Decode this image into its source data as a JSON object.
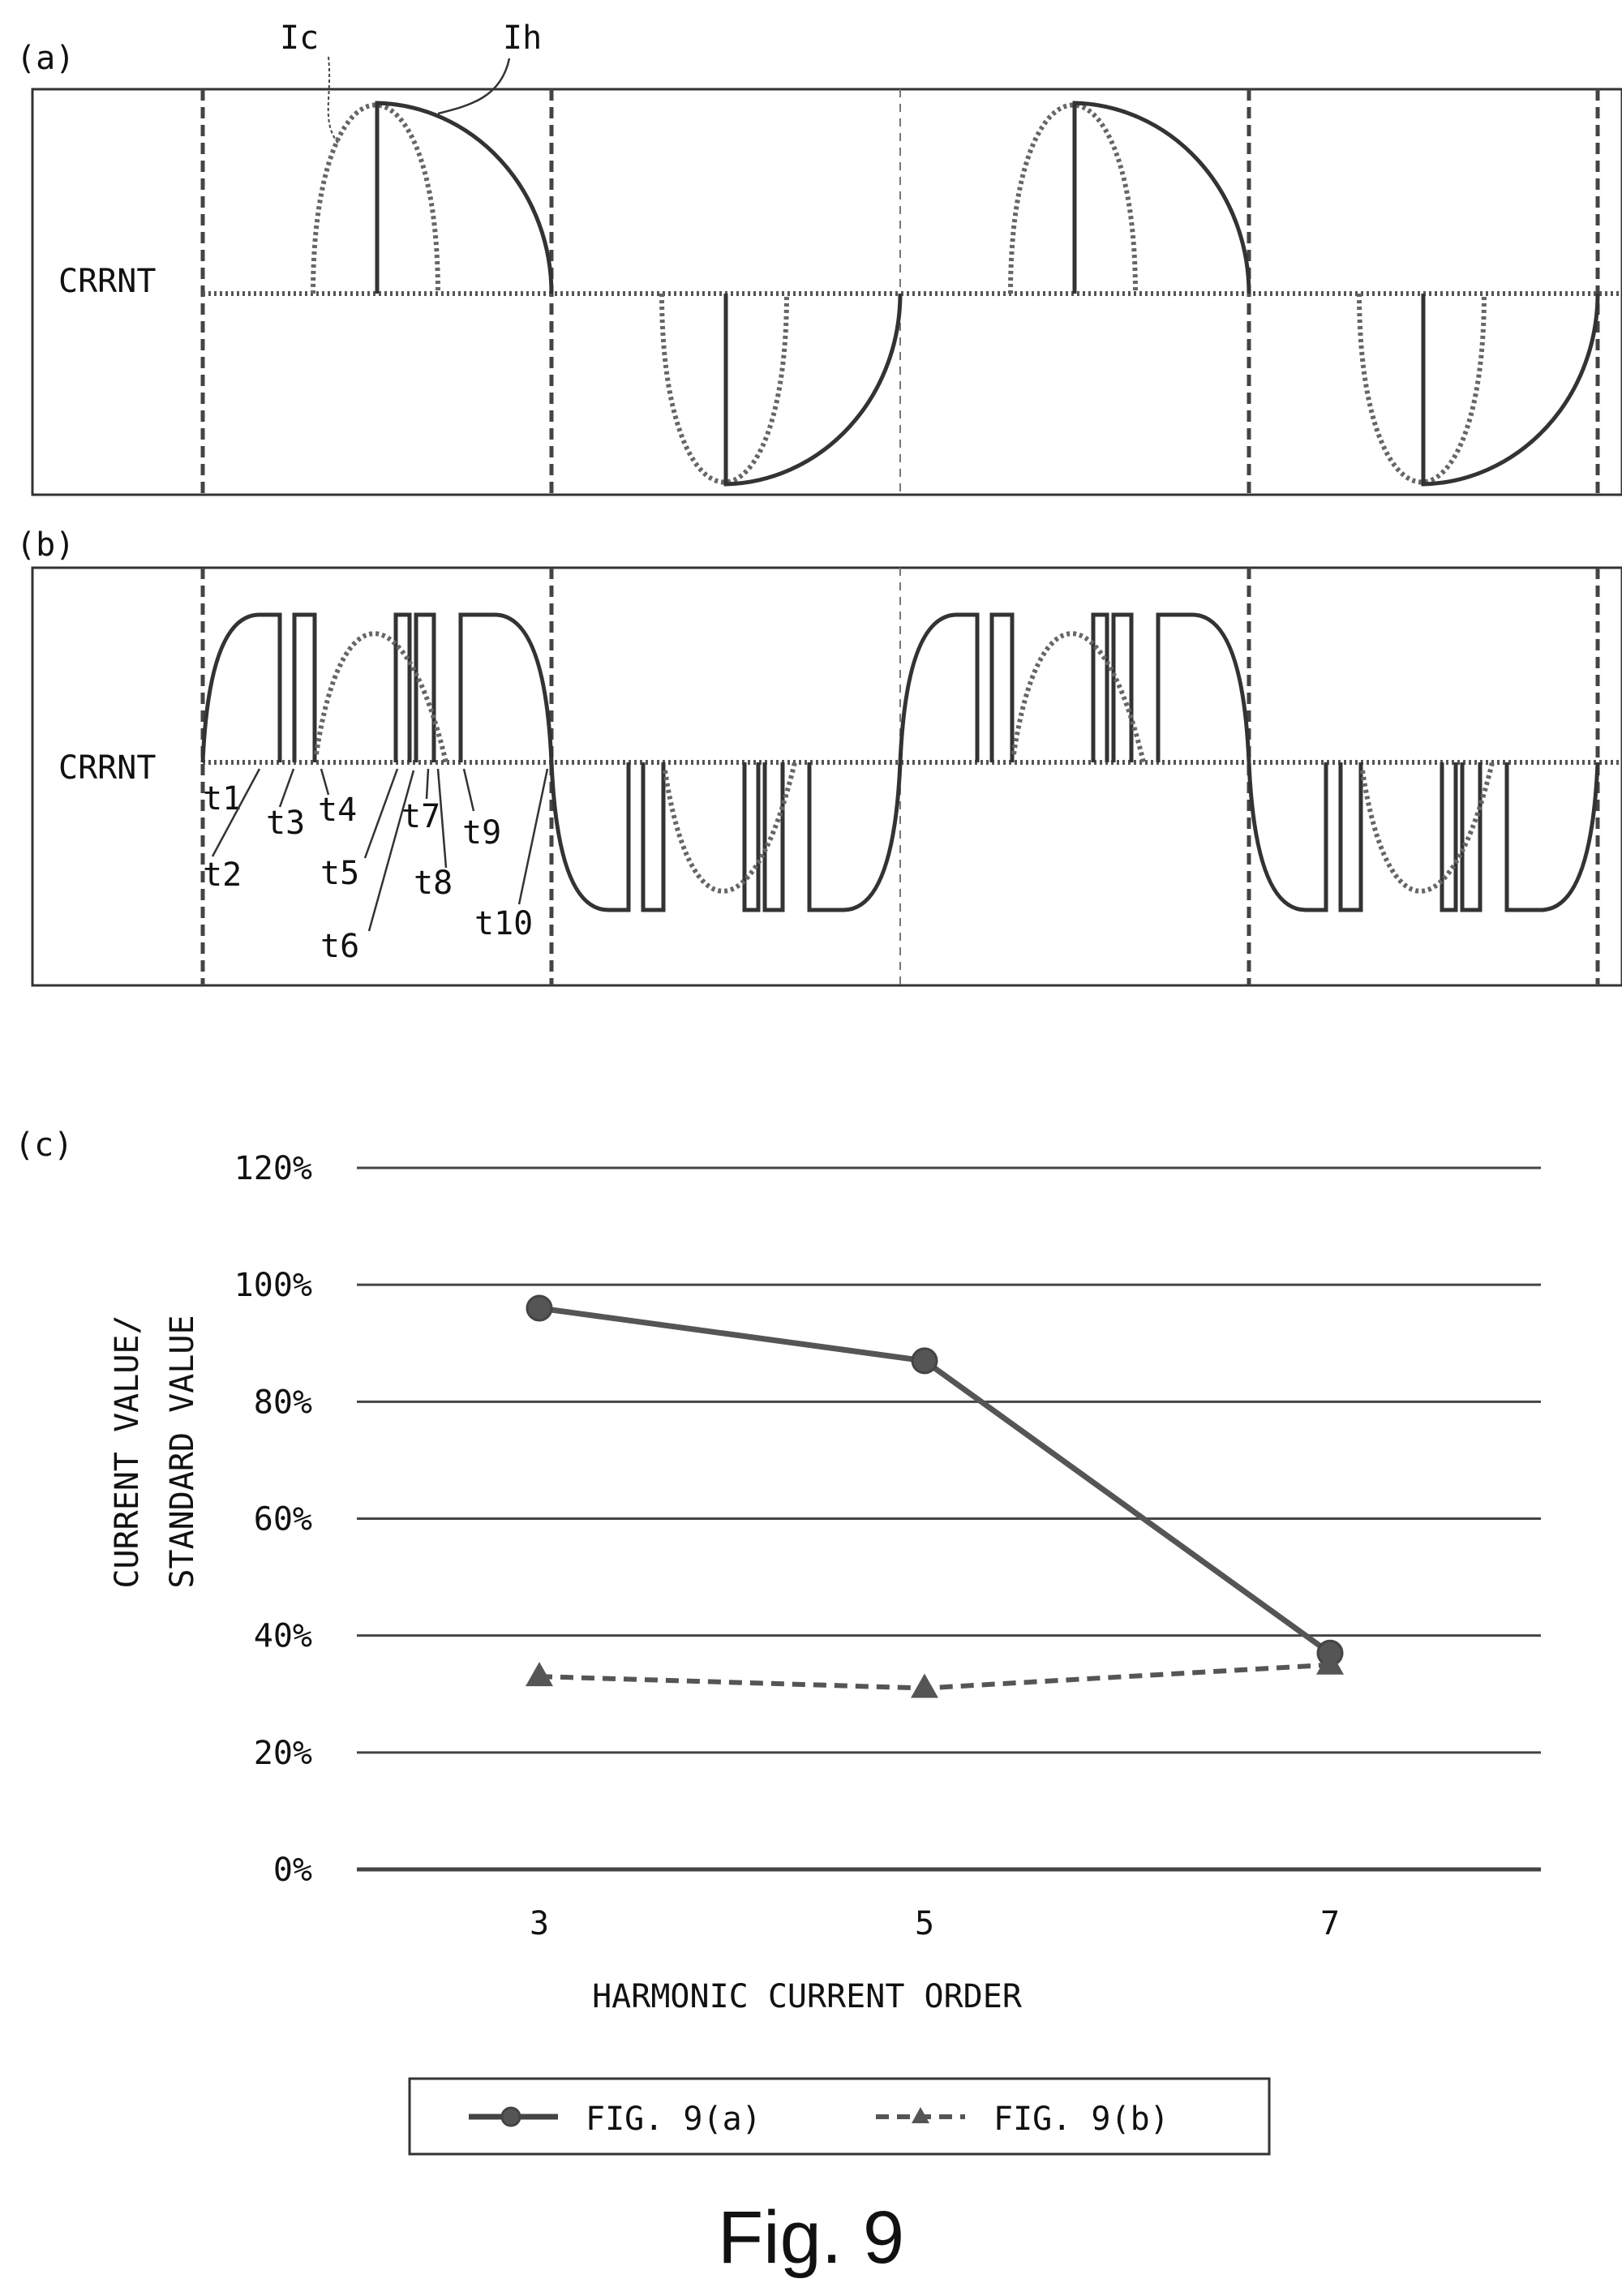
{
  "figure_caption": "Fig. 9",
  "panel_a": {
    "label": "(a)",
    "y_label": "CRRNT",
    "curve_labels": [
      "Ic",
      "Ih"
    ]
  },
  "panel_b": {
    "label": "(b)",
    "y_label": "CRRNT",
    "time_labels": [
      "t1",
      "t2",
      "t3",
      "t4",
      "t5",
      "t6",
      "t7",
      "t8",
      "t9",
      "t10"
    ]
  },
  "panel_c": {
    "label": "(c)"
  },
  "colors": {
    "line": "#333333",
    "dotted": "#666666",
    "grid": "#444444"
  },
  "chart_data": {
    "type": "line",
    "xlabel": "HARMONIC CURRENT ORDER",
    "ylabel": [
      "CURRENT VALUE/",
      "STANDARD VALUE"
    ],
    "categories": [
      "3",
      "5",
      "7"
    ],
    "ylim": [
      0,
      120
    ],
    "yticks": [
      "0%",
      "20%",
      "40%",
      "60%",
      "80%",
      "100%",
      "120%"
    ],
    "grid": true,
    "legend_position": "bottom",
    "series": [
      {
        "name": "FIG. 9(a)",
        "marker": "circle",
        "style": "solid",
        "values": [
          96,
          87,
          37
        ]
      },
      {
        "name": "FIG. 9(b)",
        "marker": "triangle",
        "style": "dashed",
        "values": [
          33,
          31,
          35
        ]
      }
    ]
  }
}
